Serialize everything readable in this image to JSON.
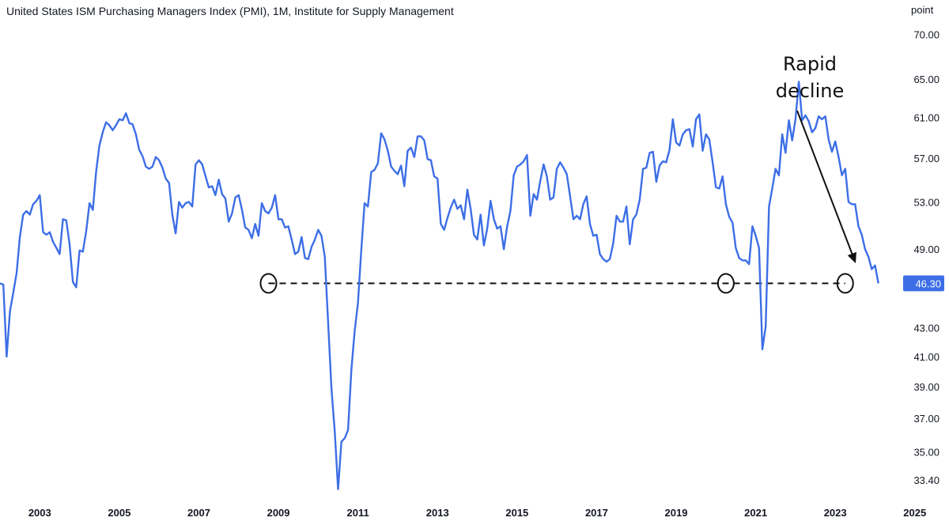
{
  "title": "United States ISM Purchasing Managers Index (PMI), 1M, Institute for Supply Management",
  "unit": "point",
  "colors": {
    "line": "#3d6ee6",
    "badge": "#3d6ee6"
  },
  "chart_data": {
    "type": "line",
    "title": "United States ISM Purchasing Managers Index (PMI), 1M, Institute for Supply Management",
    "ylabel": "point",
    "y_scale": "log",
    "ylim": [
      32.5,
      72
    ],
    "xlim": [
      "2002-01",
      "2024-09"
    ],
    "y_ticks": [
      "70.00",
      "65.00",
      "61.00",
      "57.00",
      "53.00",
      "49.00",
      "43.00",
      "41.00",
      "39.00",
      "37.00",
      "35.00",
      "33.40"
    ],
    "x_ticks": [
      {
        "date": "2003-01",
        "label": "2003"
      },
      {
        "date": "2005-01",
        "label": "2005"
      },
      {
        "date": "2007-01",
        "label": "2007"
      },
      {
        "date": "2009-01",
        "label": "2009"
      },
      {
        "date": "2011-01",
        "label": "2011"
      },
      {
        "date": "2013-01",
        "label": "2013"
      },
      {
        "date": "2015-01",
        "label": "2015"
      },
      {
        "date": "2017-01",
        "label": "2017"
      },
      {
        "date": "2019-01",
        "label": "2019"
      },
      {
        "date": "2021-01",
        "label": "2021"
      },
      {
        "date": "2023-01",
        "label": "2023"
      },
      {
        "date": "2025-01",
        "label": "2025"
      }
    ],
    "last_value_label": "46.30",
    "reference_level": 46.3,
    "annotation": {
      "text_lines": [
        "Rapid",
        "decline"
      ]
    },
    "markers": [
      "2008-10",
      "2020-04",
      "2023-04"
    ],
    "series": [
      {
        "start": "2002-01",
        "values": [
          46.3,
          46.2,
          41.0,
          44.2,
          45.6,
          47.1,
          50.0,
          51.9,
          52.2,
          51.9,
          52.8,
          53.1,
          53.6,
          50.4,
          50.2,
          50.4,
          49.6,
          49.1,
          48.6,
          51.5,
          51.4,
          49.4,
          46.4,
          46.0,
          48.9,
          48.8,
          50.5,
          52.9,
          52.3,
          55.7,
          58.2,
          59.5,
          60.5,
          60.2,
          59.7,
          60.2,
          60.8,
          60.7,
          61.4,
          60.4,
          60.3,
          59.3,
          57.8,
          57.2,
          56.2,
          56.0,
          56.2,
          57.1,
          56.8,
          56.1,
          55.1,
          54.7,
          51.9,
          50.3,
          53.0,
          52.5,
          52.9,
          53.0,
          52.6,
          56.4,
          56.8,
          56.4,
          55.3,
          54.3,
          54.4,
          53.6,
          55.0,
          53.7,
          53.3,
          51.3,
          52.0,
          53.4,
          53.6,
          52.3,
          50.8,
          50.6,
          49.9,
          51.1,
          50.1,
          52.9,
          52.2,
          52.0,
          52.5,
          53.6,
          51.5,
          51.5,
          50.8,
          50.9,
          49.8,
          48.6,
          48.8,
          50.0,
          48.3,
          48.2,
          49.2,
          49.8,
          50.6,
          50.1,
          48.4,
          43.4,
          38.9,
          36.2,
          32.9,
          35.6,
          35.8,
          36.3,
          40.1,
          42.8,
          44.8,
          48.9,
          52.9,
          52.6,
          55.7,
          55.9,
          56.5,
          59.4,
          58.8,
          57.7,
          56.2,
          55.8,
          55.5,
          56.3,
          54.4,
          57.7,
          58.0,
          57.1,
          59.1,
          59.1,
          58.7,
          56.9,
          56.8,
          55.3,
          55.1,
          51.1,
          50.6,
          51.6,
          52.5,
          53.2,
          52.4,
          52.7,
          51.5,
          54.1,
          52.4,
          50.2,
          49.8,
          51.9,
          49.3,
          50.7,
          53.1,
          51.5,
          50.7,
          50.9,
          49.0,
          50.9,
          52.2,
          55.4,
          56.2,
          56.4,
          56.7,
          57.3,
          51.8,
          53.7,
          53.2,
          54.9,
          56.4,
          55.3,
          53.2,
          53.4,
          56.0,
          56.6,
          56.1,
          55.5,
          53.5,
          51.5,
          51.8,
          51.5,
          52.8,
          53.5,
          51.1,
          50.1,
          50.2,
          48.6,
          48.2,
          48.0,
          48.2,
          49.5,
          51.8,
          51.3,
          51.3,
          52.6,
          49.4,
          51.5,
          51.9,
          53.2,
          56.0,
          56.1,
          57.5,
          57.6,
          54.8,
          56.3,
          56.7,
          56.6,
          57.8,
          60.8,
          58.5,
          58.2,
          59.3,
          59.7,
          59.8,
          58.1,
          60.8,
          61.3,
          57.7,
          59.3,
          58.8,
          56.6,
          54.3,
          54.2,
          55.3,
          52.8,
          51.7,
          51.2,
          49.1,
          48.3,
          48.1,
          48.1,
          47.8,
          50.9,
          50.1,
          49.1,
          41.5,
          43.1,
          52.6,
          54.2,
          56.0,
          55.4,
          59.3,
          57.5,
          60.7,
          58.7,
          60.8,
          64.7,
          60.7,
          61.2,
          60.6,
          59.5,
          59.9,
          61.1,
          60.8,
          61.1,
          58.8,
          57.6,
          58.6,
          57.1,
          55.4,
          56.0,
          53.0,
          52.8,
          52.8,
          50.9,
          50.2,
          49.0,
          48.4,
          47.4,
          47.7,
          46.3
        ]
      }
    ]
  }
}
